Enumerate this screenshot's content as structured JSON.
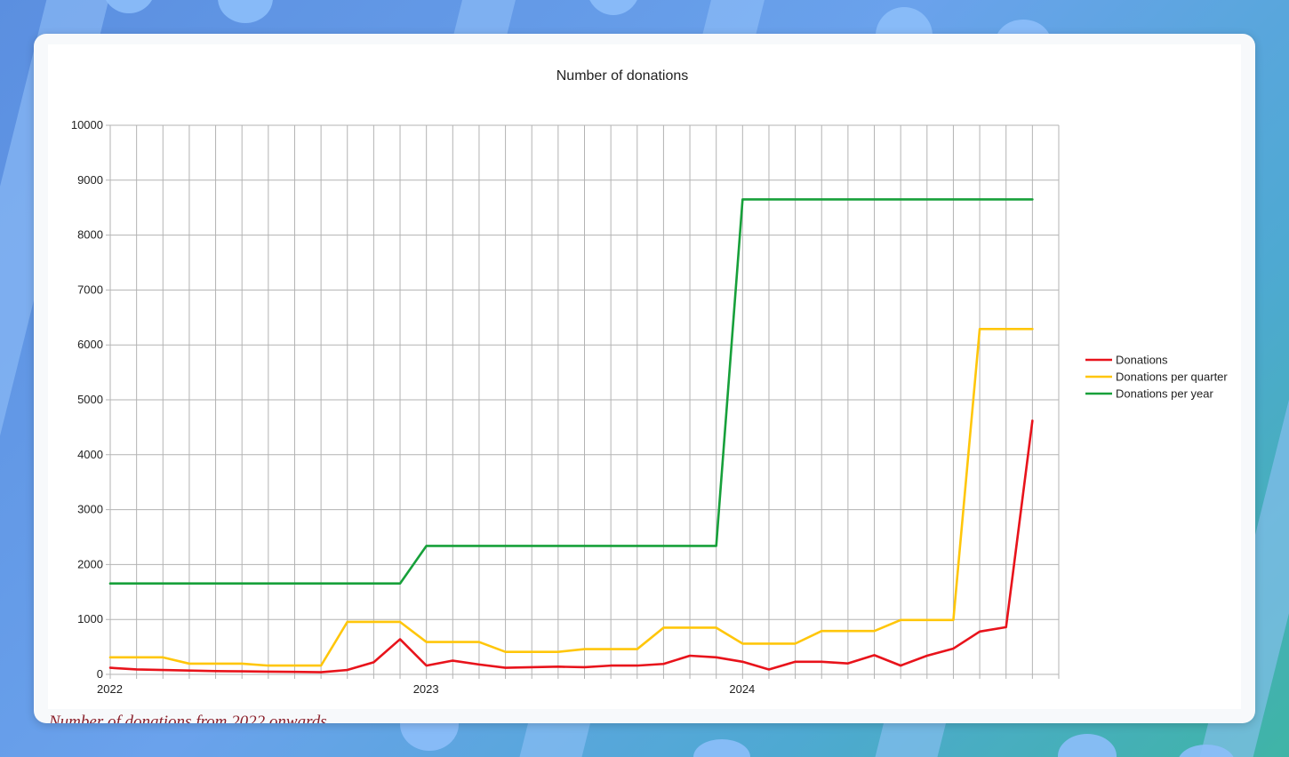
{
  "figure": {
    "caption": "Number of donations from 2022 onwards"
  },
  "colors": {
    "donations": "#e8131b",
    "per_quarter": "#ffc60a",
    "per_year": "#17a03a",
    "grid": "#b3b3b3"
  },
  "chart_data": {
    "type": "line",
    "title": "Number of donations",
    "xlabel": "",
    "ylabel": "",
    "ylim": [
      0,
      10000
    ],
    "yticks": [
      0,
      1000,
      2000,
      3000,
      4000,
      5000,
      6000,
      7000,
      8000,
      9000,
      10000
    ],
    "x_period": "monthly",
    "x_start": "2022-01",
    "x_count": 36,
    "xtick_labels": [
      {
        "label": "2022",
        "month_index": 0
      },
      {
        "label": "2023",
        "month_index": 12
      },
      {
        "label": "2024",
        "month_index": 24
      }
    ],
    "grid": true,
    "legend_position": "right",
    "series": [
      {
        "name": "Donations",
        "color": "#e8131b",
        "values": [
          120,
          90,
          80,
          70,
          60,
          55,
          50,
          45,
          40,
          80,
          220,
          640,
          160,
          250,
          180,
          120,
          130,
          140,
          130,
          160,
          160,
          190,
          340,
          310,
          230,
          90,
          230,
          230,
          200,
          350,
          160,
          340,
          470,
          780,
          860,
          4620
        ]
      },
      {
        "name": "Donations per quarter",
        "color": "#ffc60a",
        "values": [
          310,
          310,
          310,
          195,
          195,
          195,
          160,
          160,
          160,
          955,
          955,
          955,
          590,
          590,
          590,
          410,
          410,
          410,
          460,
          460,
          460,
          850,
          850,
          850,
          560,
          560,
          560,
          790,
          790,
          790,
          990,
          990,
          990,
          6290,
          6290,
          6290
        ]
      },
      {
        "name": "Donations per year",
        "color": "#17a03a",
        "values": [
          1655,
          1655,
          1655,
          1655,
          1655,
          1655,
          1655,
          1655,
          1655,
          1655,
          1655,
          1655,
          2340,
          2340,
          2340,
          2340,
          2340,
          2340,
          2340,
          2340,
          2340,
          2340,
          2340,
          2340,
          8650,
          8650,
          8650,
          8650,
          8650,
          8650,
          8650,
          8650,
          8650,
          8650,
          8650,
          8650
        ]
      }
    ]
  }
}
